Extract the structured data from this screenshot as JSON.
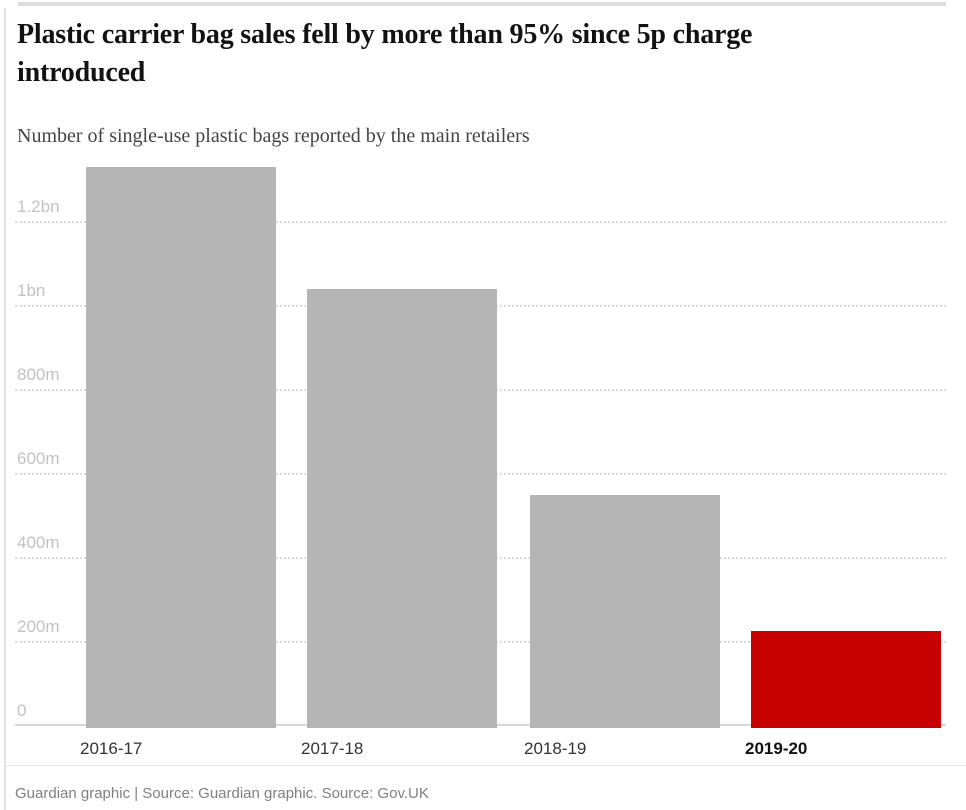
{
  "header": {
    "title": "Plastic carrier bag sales fell by more than 95% since 5p charge introduced",
    "subtitle": "Number of single-use plastic bags reported by the main retailers"
  },
  "footer": {
    "credit": "Guardian graphic | Source: Guardian graphic. Source: Gov.UK"
  },
  "colors": {
    "bar": "#b5b5b5",
    "highlight_bar": "#c70000",
    "gridline": "#d9d9d9",
    "baseline": "#d6d6d6",
    "ytick_text": "#c2c2c2",
    "xtick_text": "#333333",
    "xtick_highlight_text": "#121212",
    "title_text": "#121212",
    "subtitle_text": "#444444",
    "credit_text": "#808080",
    "rule": "#dcdcdc"
  },
  "chart_data": {
    "type": "bar",
    "title": "Plastic carrier bag sales fell by more than 95% since 5p charge introduced",
    "subtitle": "Number of single-use plastic bags reported by the main retailers",
    "unit": "number of bags (millions)",
    "categories": [
      "2016-17",
      "2017-18",
      "2018-19",
      "2019-20"
    ],
    "values": [
      1330,
      1040,
      549,
      226
    ],
    "highlight_index": 3,
    "highlight_category": "2019-20",
    "yticks": [
      {
        "value": 0,
        "label": "0"
      },
      {
        "value": 200,
        "label": "200m"
      },
      {
        "value": 400,
        "label": "400m"
      },
      {
        "value": 600,
        "label": "600m"
      },
      {
        "value": 800,
        "label": "800m"
      },
      {
        "value": 1000,
        "label": "1bn"
      },
      {
        "value": 1200,
        "label": "1.2bn"
      }
    ],
    "ylim": [
      0,
      1400
    ],
    "xlabel": "",
    "ylabel": "",
    "grid": true,
    "legend": false,
    "source": "Guardian graphic | Source: Guardian graphic. Source: Gov.UK"
  }
}
